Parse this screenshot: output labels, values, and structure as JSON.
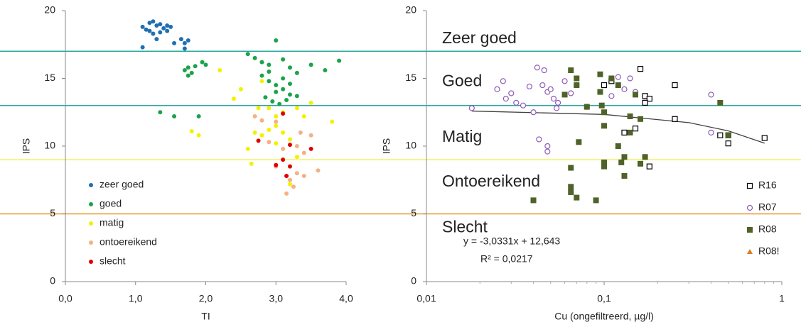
{
  "chart_data": [
    {
      "type": "scatter",
      "xlabel": "TI",
      "ylabel": "IPS",
      "xlim": [
        0,
        4
      ],
      "xticks": [
        {
          "value": 0,
          "label": "0,0"
        },
        {
          "value": 1,
          "label": "1,0"
        },
        {
          "value": 2,
          "label": "2,0"
        },
        {
          "value": 3,
          "label": "3,0"
        },
        {
          "value": 4,
          "label": "4,0"
        }
      ],
      "ylim": [
        0,
        20
      ],
      "yticks": [
        0,
        5,
        10,
        15,
        20
      ],
      "legend": "lower left",
      "hlines": [
        {
          "value": 17,
          "color": "#2aa6a0"
        },
        {
          "value": 13,
          "color": "#2aa6a0"
        },
        {
          "value": 9,
          "color": "#f2f25a"
        },
        {
          "value": 5,
          "color": "#e39a2b"
        }
      ],
      "series": [
        {
          "name": "zeer goed",
          "color": "#1f6fb4",
          "marker": "circle",
          "x": [
            1.1,
            1.15,
            1.2,
            1.25,
            1.3,
            1.35,
            1.4,
            1.45,
            1.5,
            1.35,
            1.25,
            1.1,
            1.3,
            1.55,
            1.65,
            1.7,
            1.75,
            1.7,
            1.45,
            1.2
          ],
          "values": [
            18.8,
            18.6,
            19.1,
            19.2,
            18.9,
            19.0,
            18.7,
            18.9,
            18.8,
            18.4,
            18.3,
            17.3,
            17.9,
            17.6,
            17.9,
            17.6,
            17.8,
            17.2,
            18.5,
            18.5
          ]
        },
        {
          "name": "goed",
          "color": "#1aa34a",
          "marker": "circle",
          "x": [
            1.75,
            1.7,
            1.8,
            1.75,
            1.85,
            1.95,
            2.0,
            1.35,
            1.55,
            1.9,
            2.6,
            2.7,
            2.8,
            2.9,
            3.0,
            3.1,
            3.2,
            3.5,
            3.7,
            3.9,
            2.8,
            2.9,
            3.0,
            3.1,
            3.2,
            2.85,
            2.95,
            3.05,
            3.15,
            3.3,
            3.0,
            3.1,
            2.9,
            3.2,
            3.3
          ],
          "values": [
            15.8,
            15.6,
            15.4,
            15.2,
            15.9,
            16.2,
            16.0,
            12.5,
            12.2,
            12.2,
            16.8,
            16.5,
            16.2,
            16.0,
            17.8,
            16.4,
            15.8,
            16.0,
            15.6,
            16.3,
            15.2,
            14.8,
            14.5,
            14.2,
            13.8,
            13.6,
            13.3,
            13.1,
            13.4,
            13.7,
            14.0,
            15.0,
            15.5,
            14.6,
            15.4
          ]
        },
        {
          "name": "matig",
          "color": "#f2f200",
          "marker": "circle",
          "x": [
            2.2,
            2.4,
            2.5,
            1.8,
            1.9,
            2.6,
            2.65,
            2.7,
            2.8,
            2.9,
            3.0,
            3.1,
            3.2,
            3.0,
            2.9,
            3.1,
            3.3,
            3.4,
            3.5,
            3.8,
            3.3,
            3.2,
            2.8,
            3.0,
            2.75
          ],
          "values": [
            15.6,
            13.5,
            14.2,
            11.1,
            10.8,
            9.8,
            8.7,
            11.0,
            10.8,
            11.2,
            11.5,
            11.0,
            10.5,
            12.2,
            12.8,
            12.5,
            12.8,
            12.2,
            13.2,
            11.8,
            9.2,
            7.2,
            14.8,
            10.2,
            12.8
          ]
        },
        {
          "name": "ontoereikend",
          "color": "#f4b183",
          "marker": "circle",
          "x": [
            2.7,
            2.8,
            3.0,
            2.9,
            3.1,
            3.3,
            3.5,
            3.4,
            3.3,
            3.2,
            3.15,
            3.4,
            3.6,
            3.25,
            3.0,
            3.35
          ],
          "values": [
            12.2,
            11.9,
            11.8,
            10.3,
            9.8,
            10.0,
            10.8,
            9.5,
            8.0,
            7.5,
            6.5,
            7.8,
            8.2,
            7.0,
            8.5,
            11.0
          ]
        },
        {
          "name": "slecht",
          "color": "#e00000",
          "marker": "circle",
          "x": [
            3.1,
            2.75,
            3.2,
            3.5,
            3.0,
            3.2,
            3.15,
            3.1
          ],
          "values": [
            12.4,
            10.4,
            10.1,
            9.8,
            8.6,
            8.5,
            7.8,
            9.0
          ]
        }
      ]
    },
    {
      "type": "scatter",
      "xlabel": "Cu (ongefiltreerd, µg/l)",
      "ylabel": "IPS",
      "xlog": true,
      "xlim": [
        0.01,
        1
      ],
      "xticks": [
        {
          "value": 0.01,
          "label": "0,01"
        },
        {
          "value": 0.1,
          "label": "0,1"
        },
        1
      ],
      "ylim": [
        0,
        20
      ],
      "yticks": [
        0,
        5,
        10,
        15,
        20
      ],
      "legend": "lower right",
      "hlines": [
        {
          "value": 17,
          "color": "#2aa6a0"
        },
        {
          "value": 13,
          "color": "#2aa6a0"
        },
        {
          "value": 9,
          "color": "#f2f25a"
        },
        {
          "value": 5,
          "color": "#e39a2b"
        }
      ],
      "class_labels": [
        {
          "label": "Zeer goed",
          "color": "#2479b3"
        },
        {
          "label": "Goed",
          "color": "#1aa34a"
        },
        {
          "label": "Matig",
          "color": "#f2f200"
        },
        {
          "label": "Ontoereikend",
          "color": "#e3862b"
        },
        {
          "label": "Slecht",
          "color": "#e00000"
        }
      ],
      "annotations": [
        "y = -3,0331x + 12,643",
        "R² = 0,0217"
      ],
      "trendline": {
        "color": "#404040",
        "x": [
          0.018,
          0.1,
          0.3,
          0.5,
          0.8
        ],
        "values": [
          12.588,
          12.34,
          11.733,
          11.126,
          10.217
        ]
      },
      "series": [
        {
          "name": "R16",
          "color": "#000000",
          "marker": "square-open",
          "x": [
            0.1,
            0.11,
            0.13,
            0.15,
            0.16,
            0.17,
            0.18,
            0.17,
            0.18,
            0.25,
            0.25,
            0.45,
            0.5,
            0.5,
            0.8
          ],
          "values": [
            14.5,
            14.8,
            11.0,
            11.3,
            15.7,
            13.7,
            13.5,
            13.2,
            8.5,
            14.5,
            12.0,
            10.8,
            10.2,
            10.8,
            10.6
          ]
        },
        {
          "name": "R07",
          "color": "#8e5bb5",
          "marker": "circle-open",
          "x": [
            0.018,
            0.025,
            0.027,
            0.028,
            0.03,
            0.032,
            0.035,
            0.038,
            0.04,
            0.042,
            0.043,
            0.045,
            0.046,
            0.048,
            0.048,
            0.048,
            0.05,
            0.052,
            0.054,
            0.055,
            0.06,
            0.065,
            0.07,
            0.08,
            0.12,
            0.13,
            0.14,
            0.15,
            0.4,
            0.4,
            0.11
          ],
          "values": [
            12.8,
            14.2,
            14.8,
            13.5,
            13.9,
            13.2,
            13.0,
            14.4,
            12.5,
            15.8,
            10.5,
            14.5,
            15.6,
            14.0,
            10.0,
            9.6,
            14.2,
            13.5,
            12.8,
            13.2,
            14.8,
            13.9,
            14.5,
            12.9,
            15.1,
            14.2,
            15.0,
            14.0,
            13.8,
            11.0,
            13.7
          ]
        },
        {
          "name": "R08",
          "color": "#4f6228",
          "marker": "square",
          "x": [
            0.04,
            0.06,
            0.065,
            0.065,
            0.065,
            0.065,
            0.07,
            0.07,
            0.07,
            0.072,
            0.08,
            0.09,
            0.095,
            0.095,
            0.097,
            0.1,
            0.1,
            0.1,
            0.1,
            0.11,
            0.12,
            0.125,
            0.13,
            0.13,
            0.14,
            0.14,
            0.15,
            0.16,
            0.17,
            0.45,
            0.5,
            0.12,
            0.16
          ],
          "values": [
            6.0,
            13.8,
            15.6,
            8.4,
            7.0,
            6.6,
            15.0,
            14.5,
            6.2,
            10.3,
            12.9,
            6.0,
            15.3,
            14.0,
            13.0,
            12.5,
            11.5,
            8.8,
            8.5,
            15.0,
            14.5,
            8.8,
            7.8,
            9.2,
            12.2,
            11.0,
            13.8,
            8.7,
            9.2,
            13.2,
            10.8,
            10.0,
            12.0
          ]
        },
        {
          "name": "R08!",
          "color": "#e07b1a",
          "marker": "triangle",
          "x": [],
          "values": []
        }
      ]
    }
  ]
}
